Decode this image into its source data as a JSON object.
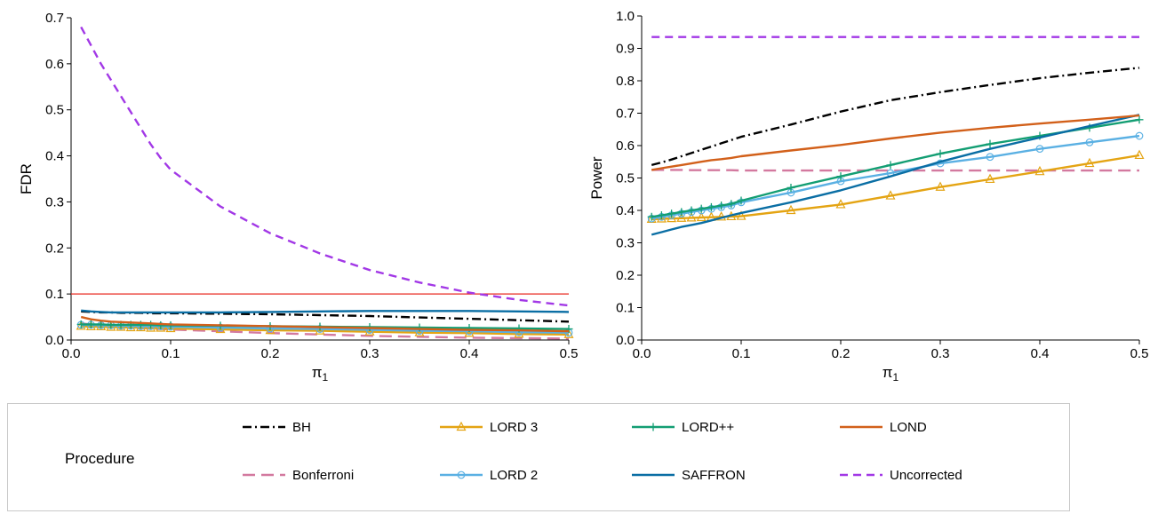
{
  "chart_data": [
    {
      "type": "line",
      "xlabel": "π",
      "xlabel_sub": "1",
      "ylabel": "FDR",
      "xlim": [
        0,
        0.5
      ],
      "ylim": [
        0,
        0.7
      ],
      "xticks": [
        0.0,
        0.1,
        0.2,
        0.3,
        0.4,
        0.5
      ],
      "yticks": [
        0.0,
        0.1,
        0.2,
        0.3,
        0.4,
        0.5,
        0.6,
        0.7
      ],
      "hline": {
        "y": 0.1,
        "color": "#e8251d"
      },
      "x": [
        0.01,
        0.02,
        0.03,
        0.04,
        0.05,
        0.06,
        0.07,
        0.08,
        0.09,
        0.1,
        0.15,
        0.2,
        0.25,
        0.3,
        0.35,
        0.4,
        0.45,
        0.5
      ],
      "series": [
        {
          "name": "BH",
          "values": [
            0.062,
            0.061,
            0.06,
            0.06,
            0.059,
            0.059,
            0.059,
            0.058,
            0.058,
            0.058,
            0.057,
            0.056,
            0.054,
            0.052,
            0.049,
            0.046,
            0.043,
            0.04
          ]
        },
        {
          "name": "Bonferroni",
          "values": [
            0.036,
            0.034,
            0.032,
            0.03,
            0.029,
            0.027,
            0.026,
            0.025,
            0.024,
            0.023,
            0.019,
            0.015,
            0.012,
            0.009,
            0.007,
            0.005,
            0.004,
            0.003
          ]
        },
        {
          "name": "LORD 3",
          "values": [
            0.03,
            0.029,
            0.029,
            0.028,
            0.028,
            0.027,
            0.027,
            0.026,
            0.026,
            0.025,
            0.023,
            0.021,
            0.02,
            0.018,
            0.016,
            0.015,
            0.013,
            0.012
          ]
        },
        {
          "name": "LORD 2",
          "values": [
            0.033,
            0.033,
            0.032,
            0.032,
            0.031,
            0.031,
            0.03,
            0.03,
            0.03,
            0.029,
            0.027,
            0.025,
            0.024,
            0.022,
            0.02,
            0.019,
            0.017,
            0.016
          ]
        },
        {
          "name": "LORD++",
          "values": [
            0.034,
            0.034,
            0.034,
            0.033,
            0.033,
            0.033,
            0.033,
            0.033,
            0.032,
            0.032,
            0.031,
            0.03,
            0.029,
            0.028,
            0.027,
            0.026,
            0.025,
            0.024
          ]
        },
        {
          "name": "SAFFRON",
          "values": [
            0.064,
            0.062,
            0.061,
            0.06,
            0.06,
            0.06,
            0.06,
            0.06,
            0.06,
            0.06,
            0.06,
            0.061,
            0.062,
            0.063,
            0.063,
            0.063,
            0.062,
            0.061
          ]
        },
        {
          "name": "LOND",
          "values": [
            0.05,
            0.045,
            0.042,
            0.04,
            0.039,
            0.038,
            0.037,
            0.036,
            0.035,
            0.034,
            0.032,
            0.03,
            0.028,
            0.026,
            0.024,
            0.022,
            0.021,
            0.019
          ]
        },
        {
          "name": "Uncorrected",
          "values": [
            0.68,
            0.64,
            0.6,
            0.565,
            0.53,
            0.495,
            0.46,
            0.425,
            0.395,
            0.37,
            0.29,
            0.232,
            0.188,
            0.152,
            0.125,
            0.103,
            0.087,
            0.075
          ]
        }
      ]
    },
    {
      "type": "line",
      "xlabel": "π",
      "xlabel_sub": "1",
      "ylabel": "Power",
      "xlim": [
        0,
        0.5
      ],
      "ylim": [
        0,
        1.0
      ],
      "xticks": [
        0.0,
        0.1,
        0.2,
        0.3,
        0.4,
        0.5
      ],
      "yticks": [
        0.0,
        0.1,
        0.2,
        0.3,
        0.4,
        0.5,
        0.6,
        0.7,
        0.8,
        0.9,
        1.0
      ],
      "x": [
        0.01,
        0.02,
        0.03,
        0.04,
        0.05,
        0.06,
        0.07,
        0.08,
        0.09,
        0.1,
        0.15,
        0.2,
        0.25,
        0.3,
        0.35,
        0.4,
        0.45,
        0.5
      ],
      "series": [
        {
          "name": "BH",
          "values": [
            0.54,
            0.548,
            0.557,
            0.567,
            0.577,
            0.587,
            0.597,
            0.607,
            0.617,
            0.627,
            0.665,
            0.705,
            0.74,
            0.765,
            0.787,
            0.808,
            0.825,
            0.84
          ]
        },
        {
          "name": "Bonferroni",
          "values": [
            0.525,
            0.525,
            0.525,
            0.525,
            0.524,
            0.524,
            0.524,
            0.524,
            0.524,
            0.523,
            0.523,
            0.523,
            0.523,
            0.523,
            0.523,
            0.523,
            0.523,
            0.523
          ]
        },
        {
          "name": "LORD 3",
          "values": [
            0.373,
            0.374,
            0.375,
            0.376,
            0.377,
            0.378,
            0.379,
            0.38,
            0.381,
            0.382,
            0.4,
            0.418,
            0.445,
            0.472,
            0.496,
            0.52,
            0.545,
            0.57
          ]
        },
        {
          "name": "LORD 2",
          "values": [
            0.375,
            0.38,
            0.385,
            0.39,
            0.395,
            0.4,
            0.405,
            0.41,
            0.415,
            0.425,
            0.455,
            0.49,
            0.515,
            0.545,
            0.565,
            0.59,
            0.61,
            0.63
          ]
        },
        {
          "name": "LORD++",
          "values": [
            0.38,
            0.385,
            0.39,
            0.395,
            0.4,
            0.405,
            0.41,
            0.415,
            0.42,
            0.43,
            0.47,
            0.505,
            0.54,
            0.575,
            0.605,
            0.63,
            0.655,
            0.68
          ]
        },
        {
          "name": "SAFFRON",
          "values": [
            0.325,
            0.333,
            0.341,
            0.349,
            0.355,
            0.361,
            0.369,
            0.377,
            0.385,
            0.392,
            0.425,
            0.462,
            0.505,
            0.55,
            0.59,
            0.625,
            0.66,
            0.695
          ]
        },
        {
          "name": "LOND",
          "values": [
            0.525,
            0.53,
            0.535,
            0.54,
            0.545,
            0.55,
            0.555,
            0.558,
            0.562,
            0.567,
            0.585,
            0.602,
            0.622,
            0.64,
            0.655,
            0.668,
            0.68,
            0.693
          ]
        },
        {
          "name": "Uncorrected",
          "values": [
            0.935,
            0.935,
            0.935,
            0.935,
            0.935,
            0.935,
            0.935,
            0.935,
            0.935,
            0.935,
            0.935,
            0.935,
            0.935,
            0.935,
            0.935,
            0.935,
            0.935,
            0.935
          ]
        }
      ]
    }
  ],
  "styles": {
    "BH": {
      "color": "#000000",
      "dash": "10,4,2,4",
      "marker": "none"
    },
    "Bonferroni": {
      "color": "#d3799f",
      "dash": "14,7",
      "marker": "none"
    },
    "LORD 3": {
      "color": "#e4a413",
      "dash": "",
      "marker": "triangle"
    },
    "LORD 2": {
      "color": "#5ab0e3",
      "dash": "",
      "marker": "circle"
    },
    "LORD++": {
      "color": "#139e73",
      "dash": "",
      "marker": "plus"
    },
    "SAFFRON": {
      "color": "#0a6ea4",
      "dash": "",
      "marker": "none"
    },
    "LOND": {
      "color": "#d2601a",
      "dash": "",
      "marker": "none"
    },
    "Uncorrected": {
      "color": "#a238e6",
      "dash": "9,6",
      "marker": "none"
    }
  },
  "legend": {
    "title": "Procedure",
    "items": [
      "BH",
      "LORD 3",
      "LORD++",
      "LOND",
      "Bonferroni",
      "LORD 2",
      "SAFFRON",
      "Uncorrected"
    ]
  }
}
